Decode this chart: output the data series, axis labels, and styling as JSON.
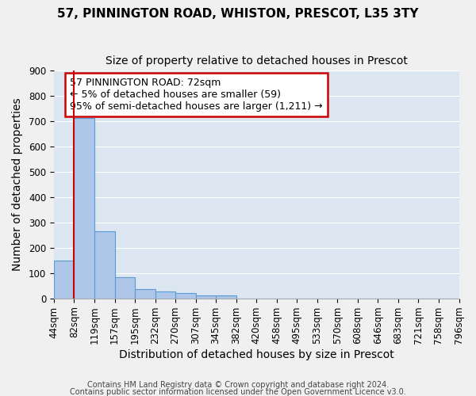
{
  "title1": "57, PINNINGTON ROAD, WHISTON, PRESCOT, L35 3TY",
  "title2": "Size of property relative to detached houses in Prescot",
  "xlabel": "Distribution of detached houses by size in Prescot",
  "ylabel": "Number of detached properties",
  "footnote1": "Contains HM Land Registry data © Crown copyright and database right 2024.",
  "footnote2": "Contains public sector information licensed under the Open Government Licence v3.0.",
  "bin_labels": [
    "44sqm",
    "82sqm",
    "119sqm",
    "157sqm",
    "195sqm",
    "232sqm",
    "270sqm",
    "307sqm",
    "345sqm",
    "382sqm",
    "420sqm",
    "458sqm",
    "495sqm",
    "533sqm",
    "570sqm",
    "608sqm",
    "646sqm",
    "683sqm",
    "721sqm",
    "758sqm",
    "796sqm"
  ],
  "bar_values": [
    148,
    713,
    265,
    83,
    37,
    28,
    20,
    13,
    12,
    0,
    0,
    0,
    0,
    0,
    0,
    0,
    0,
    0,
    0,
    0
  ],
  "bar_color": "#aec6e8",
  "bar_edge_color": "#5b9bd5",
  "bg_color": "#dce6f1",
  "grid_color": "#ffffff",
  "red_line_bin_index": 1,
  "annotation_text": "57 PINNINGTON ROAD: 72sqm\n← 5% of detached houses are smaller (59)\n95% of semi-detached houses are larger (1,211) →",
  "annotation_box_color": "#ffffff",
  "annotation_border_color": "#cc0000",
  "ylim": [
    0,
    900
  ],
  "yticks": [
    0,
    100,
    200,
    300,
    400,
    500,
    600,
    700,
    800,
    900
  ],
  "title1_fontsize": 11,
  "title2_fontsize": 10,
  "xlabel_fontsize": 10,
  "ylabel_fontsize": 10,
  "tick_fontsize": 8.5,
  "annot_fontsize": 9,
  "fig_bg_color": "#f0f0f0"
}
